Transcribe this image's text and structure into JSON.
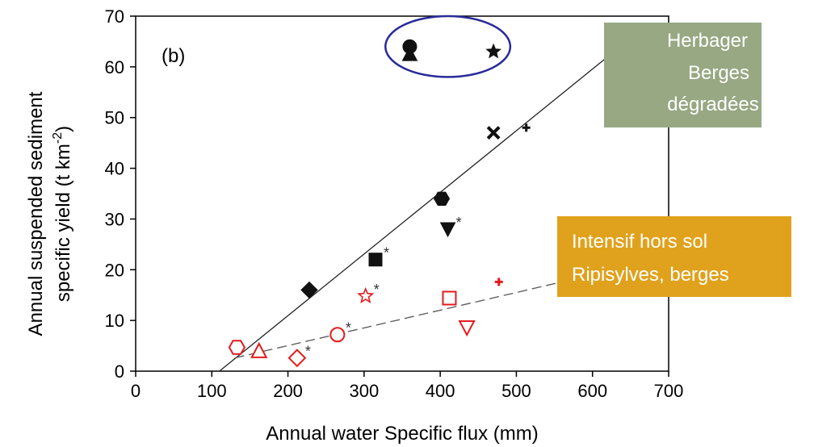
{
  "chart_data": {
    "type": "scatter",
    "panel_label": "(b)",
    "xlabel": "Annual water Specific flux   (mm)",
    "ylabel_line1": "Annual suspended sediment",
    "ylabel_line2": "specific yield    (t  km",
    "ylabel_sup": "-2",
    "ylabel_close": ")",
    "xlim": [
      0,
      700
    ],
    "ylim": [
      0,
      70
    ],
    "x_ticks": [
      "0",
      "100",
      "200",
      "300",
      "400",
      "500",
      "600",
      "700"
    ],
    "y_ticks": [
      "0",
      "10",
      "20",
      "30",
      "40",
      "50",
      "60",
      "70"
    ],
    "grid": false,
    "colors": {
      "group_dark": "#111111",
      "group_red": "#e41a1c",
      "ellipse": "#2a2a9a",
      "box_green": "#97a883",
      "box_orange": "#e0a21c"
    },
    "series": [
      {
        "color": "#111111",
        "points": [
          {
            "x": 228,
            "y": 16,
            "marker": "diamond",
            "filled": true,
            "asterisk": false
          },
          {
            "x": 315,
            "y": 22,
            "marker": "square",
            "filled": true,
            "asterisk": true
          },
          {
            "x": 402,
            "y": 34,
            "marker": "hexagon",
            "filled": true,
            "asterisk": false
          },
          {
            "x": 410,
            "y": 28,
            "marker": "triangle-down",
            "filled": true,
            "asterisk": true
          },
          {
            "x": 470,
            "y": 47,
            "marker": "x",
            "filled": true,
            "asterisk": false
          },
          {
            "x": 513,
            "y": 48,
            "marker": "plus",
            "filled": true,
            "asterisk": false
          },
          {
            "x": 360,
            "y": 64,
            "marker": "circle",
            "filled": true,
            "asterisk": false
          },
          {
            "x": 360,
            "y": 62.5,
            "marker": "triangle-up",
            "filled": true,
            "asterisk": false
          },
          {
            "x": 470,
            "y": 63,
            "marker": "star",
            "filled": true,
            "asterisk": false
          }
        ],
        "fit": {
          "style": "solid",
          "x": [
            110,
            620
          ],
          "y": [
            0,
            62
          ]
        }
      },
      {
        "color": "#e41a1c",
        "points": [
          {
            "x": 133,
            "y": 4.7,
            "marker": "hexagon",
            "filled": false,
            "asterisk": false
          },
          {
            "x": 162,
            "y": 4,
            "marker": "triangle-up",
            "filled": false,
            "asterisk": false
          },
          {
            "x": 212,
            "y": 2.6,
            "marker": "diamond",
            "filled": false,
            "asterisk": true
          },
          {
            "x": 265,
            "y": 7.2,
            "marker": "circle",
            "filled": false,
            "asterisk": true
          },
          {
            "x": 302,
            "y": 14.8,
            "marker": "star",
            "filled": false,
            "asterisk": true
          },
          {
            "x": 412,
            "y": 14.4,
            "marker": "square",
            "filled": false,
            "asterisk": false
          },
          {
            "x": 435,
            "y": 8.6,
            "marker": "triangle-down",
            "filled": false,
            "asterisk": false
          },
          {
            "x": 477,
            "y": 17.6,
            "marker": "plus",
            "filled": true,
            "asterisk": false
          }
        ],
        "fit": {
          "style": "dashed",
          "x": [
            130,
            600
          ],
          "y": [
            2.6,
            19
          ]
        }
      }
    ],
    "annotations": {
      "ellipse": {
        "cx": 410,
        "cy": 64,
        "rx": 82,
        "ry": 6
      },
      "box_top": {
        "lines": [
          "Herbager",
          "Berges",
          "dégradées"
        ]
      },
      "box_bottom": {
        "lines": [
          "Intensif hors sol",
          "Ripisylves, berges"
        ]
      }
    }
  }
}
